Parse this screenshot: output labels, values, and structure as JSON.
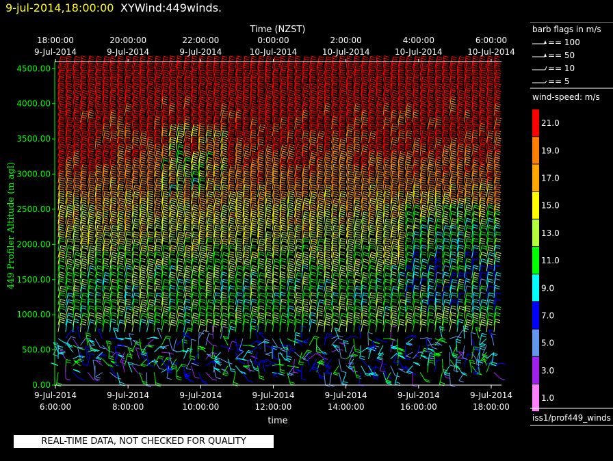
{
  "title": {
    "datetime": "9-jul-2014,18:00:00",
    "text": "XYWind:449winds."
  },
  "chart_data": {
    "type": "wind-barb time-height",
    "top_axis": {
      "label": "Time (NZST)",
      "ticks": [
        {
          "time": "18:00:00",
          "date": "9-Jul-2014"
        },
        {
          "time": "20:00:00",
          "date": "9-Jul-2014"
        },
        {
          "time": "22:00:00",
          "date": "9-Jul-2014"
        },
        {
          "time": "0:00:00",
          "date": "10-Jul-2014"
        },
        {
          "time": "2:00:00",
          "date": "10-Jul-2014"
        },
        {
          "time": "4:00:00",
          "date": "10-Jul-2014"
        },
        {
          "time": "6:00:00",
          "date": "10-Jul-2014"
        }
      ]
    },
    "bottom_axis": {
      "label": "time",
      "ticks": [
        {
          "date": "9-Jul-2014",
          "time": "6:00:00"
        },
        {
          "date": "9-Jul-2014",
          "time": "8:00:00"
        },
        {
          "date": "9-Jul-2014",
          "time": "10:00:00"
        },
        {
          "date": "9-Jul-2014",
          "time": "12:00:00"
        },
        {
          "date": "9-Jul-2014",
          "time": "14:00:00"
        },
        {
          "date": "9-Jul-2014",
          "time": "16:00:00"
        },
        {
          "date": "9-Jul-2014",
          "time": "18:00:00"
        }
      ]
    },
    "y_axis": {
      "label": "449 Profiler Altitude (m agl)",
      "ylim": [
        0,
        4600
      ],
      "ticks": [
        "0.00",
        "500.00",
        "1000.00",
        "1500.00",
        "2000.00",
        "2500.00",
        "3000.00",
        "3500.00",
        "4000.00",
        "4500.00"
      ],
      "color": "#00ff00"
    },
    "barb_flags": {
      "title": "barb flags in m/s",
      "entries": [
        "== 100",
        "== 50",
        "== 10",
        "== 5"
      ]
    },
    "colorbar": {
      "title": "wind-speed: m/s",
      "labels": [
        "21.0",
        "19.0",
        "17.0",
        "15.0",
        "13.0",
        "11.0",
        "9.0",
        "7.0",
        "5.0",
        "3.0",
        "1.0"
      ],
      "colors": [
        "#ff0000",
        "#ff8000",
        "#ffa500",
        "#ffff00",
        "#b4ff3c",
        "#00ff00",
        "#00ffff",
        "#0000ff",
        "#6495ed",
        "#a020f0",
        "#ff80ff"
      ]
    },
    "wind_speed_profile": [
      {
        "altitude": 300,
        "speed": 6
      },
      {
        "altitude": 800,
        "speed": 12
      },
      {
        "altitude": 1200,
        "speed": 11
      },
      {
        "altitude": 1600,
        "speed": 12
      },
      {
        "altitude": 2000,
        "speed": 14
      },
      {
        "altitude": 2400,
        "speed": 15
      },
      {
        "altitude": 2800,
        "speed": 18
      },
      {
        "altitude": 3200,
        "speed": 20
      },
      {
        "altitude": 3600,
        "speed": 21
      },
      {
        "altitude": 4000,
        "speed": 22
      },
      {
        "altitude": 4500,
        "speed": 22
      }
    ]
  },
  "footer": {
    "source": "iss1/prof449_winds",
    "qc_banner": "REAL-TIME DATA, NOT CHECKED FOR QUALITY"
  }
}
